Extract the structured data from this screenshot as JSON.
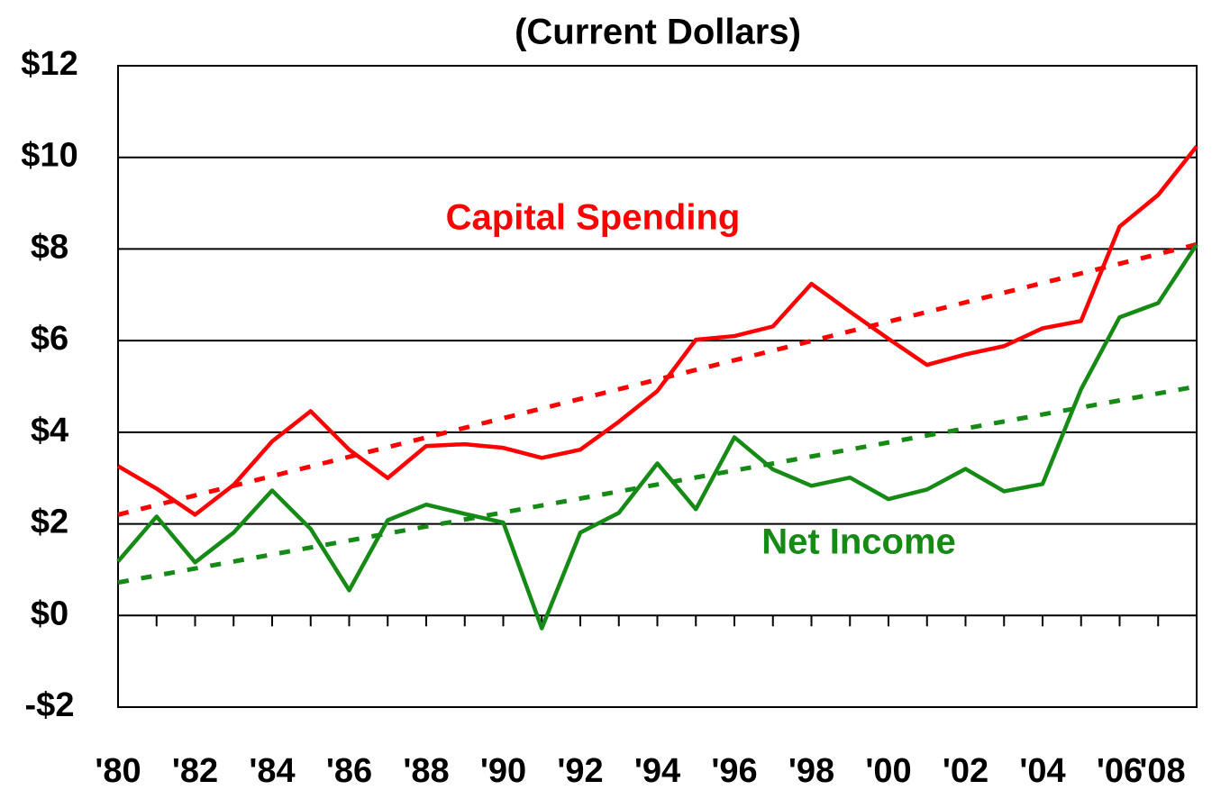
{
  "chart_data": {
    "type": "line",
    "title": "(Current Dollars)",
    "categories": [
      "'80",
      null,
      "'82",
      null,
      "'84",
      null,
      "'86",
      null,
      "'88",
      null,
      "'90",
      null,
      "'92",
      null,
      "'94",
      null,
      "'96",
      null,
      "'98",
      null,
      "'00",
      null,
      "'02",
      null,
      "'04",
      null,
      "'06",
      null,
      "'08"
    ],
    "series": [
      {
        "name": "Capital Spending",
        "color": "#ff0000",
        "values": [
          3.26,
          2.77,
          2.2,
          2.85,
          3.8,
          4.46,
          3.62,
          3.0,
          3.7,
          3.74,
          3.66,
          3.44,
          3.62,
          4.23,
          4.9,
          6.02,
          6.1,
          6.31,
          7.24,
          6.63,
          6.04,
          5.47,
          5.7,
          5.88,
          6.27,
          6.43,
          8.49,
          9.18,
          10.24
        ]
      },
      {
        "name": "Net Income",
        "color": "#158a15",
        "values": [
          1.18,
          2.16,
          1.16,
          1.81,
          2.73,
          1.89,
          0.55,
          2.08,
          2.42,
          2.22,
          2.03,
          -0.28,
          1.81,
          2.24,
          3.32,
          2.32,
          3.89,
          3.19,
          2.83,
          3.01,
          2.54,
          2.75,
          3.2,
          2.71,
          2.87,
          4.94,
          6.51,
          6.82,
          8.1
        ]
      }
    ],
    "trends": [
      {
        "color": "#ff0000",
        "values": [
          2.2,
          8.1
        ]
      },
      {
        "color": "#158a15",
        "values": [
          0.72,
          5.0
        ]
      }
    ],
    "ylim": [
      -2,
      12
    ],
    "yticks": [
      {
        "value": -2,
        "label": "-$2"
      },
      {
        "value": 0,
        "label": "$0"
      },
      {
        "value": 2,
        "label": "$2"
      },
      {
        "value": 4,
        "label": "$4"
      },
      {
        "value": 6,
        "label": "$6"
      },
      {
        "value": 8,
        "label": "$8"
      },
      {
        "value": 10,
        "label": "$10"
      },
      {
        "value": 12,
        "label": "$12"
      }
    ],
    "grid": true
  }
}
